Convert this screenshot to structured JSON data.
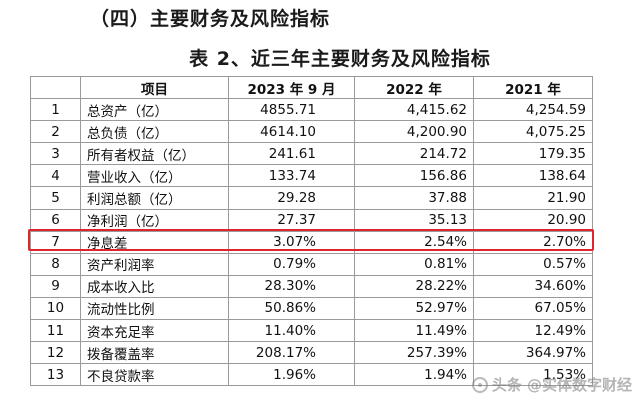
{
  "section_heading": "（四）主要财务及风险指标",
  "table_title": "表 2、近三年主要财务及风险指标",
  "headers": [
    "",
    "项目",
    "2023 年 9 月",
    "2022 年",
    "2021 年"
  ],
  "rows": [
    {
      "idx": "1",
      "name": "总资产（亿）",
      "v1": "4855.71",
      "v2": "4,415.62",
      "v3": "4,254.59"
    },
    {
      "idx": "2",
      "name": "总负债（亿）",
      "v1": "4614.10",
      "v2": "4,200.90",
      "v3": "4,075.25"
    },
    {
      "idx": "3",
      "name": "所有者权益（亿）",
      "v1": "241.61",
      "v2": "214.72",
      "v3": "179.35"
    },
    {
      "idx": "4",
      "name": "营业收入（亿）",
      "v1": "133.74",
      "v2": "156.86",
      "v3": "138.64"
    },
    {
      "idx": "5",
      "name": "利润总额（亿）",
      "v1": "29.28",
      "v2": "37.88",
      "v3": "21.90"
    },
    {
      "idx": "6",
      "name": "净利润（亿）",
      "v1": "27.37",
      "v2": "35.13",
      "v3": "20.90"
    },
    {
      "idx": "7",
      "name": "净息差",
      "v1": "3.07%",
      "v2": "2.54%",
      "v3": "2.70%"
    },
    {
      "idx": "8",
      "name": "资产利润率",
      "v1": "0.79%",
      "v2": "0.81%",
      "v3": "0.57%"
    },
    {
      "idx": "9",
      "name": "成本收入比",
      "v1": "28.30%",
      "v2": "28.22%",
      "v3": "34.60%"
    },
    {
      "idx": "10",
      "name": "流动性比例",
      "v1": "50.86%",
      "v2": "52.97%",
      "v3": "67.05%"
    },
    {
      "idx": "11",
      "name": "资本充足率",
      "v1": "11.40%",
      "v2": "11.49%",
      "v3": "12.49%"
    },
    {
      "idx": "12",
      "name": "拨备覆盖率",
      "v1": "208.17%",
      "v2": "257.39%",
      "v3": "364.97%"
    },
    {
      "idx": "13",
      "name": "不良贷款率",
      "v1": "1.96%",
      "v2": "1.94%",
      "v3": "1.53%"
    }
  ],
  "highlight_color": "#e0242b",
  "watermark": "头条 @实体数字财经"
}
